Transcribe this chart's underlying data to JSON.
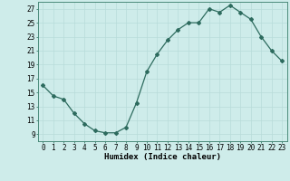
{
  "x": [
    0,
    1,
    2,
    3,
    4,
    5,
    6,
    7,
    8,
    9,
    10,
    11,
    12,
    13,
    14,
    15,
    16,
    17,
    18,
    19,
    20,
    21,
    22,
    23
  ],
  "y": [
    16,
    14.5,
    14,
    12,
    10.5,
    9.5,
    9.2,
    9.2,
    10,
    13.5,
    18,
    20.5,
    22.5,
    24,
    25,
    25,
    27,
    26.5,
    27.5,
    26.5,
    25.5,
    23,
    21,
    19.5
  ],
  "line_color": "#2d6b5e",
  "marker": "D",
  "marker_size": 2,
  "bg_color": "#ceecea",
  "grid_color": "#b8dcd9",
  "xlabel": "Humidex (Indice chaleur)",
  "xlim": [
    -0.5,
    23.5
  ],
  "ylim": [
    8,
    28
  ],
  "yticks": [
    9,
    11,
    13,
    15,
    17,
    19,
    21,
    23,
    25,
    27
  ],
  "xticks": [
    0,
    1,
    2,
    3,
    4,
    5,
    6,
    7,
    8,
    9,
    10,
    11,
    12,
    13,
    14,
    15,
    16,
    17,
    18,
    19,
    20,
    21,
    22,
    23
  ],
  "tick_fontsize": 5.5,
  "label_fontsize": 6.5
}
